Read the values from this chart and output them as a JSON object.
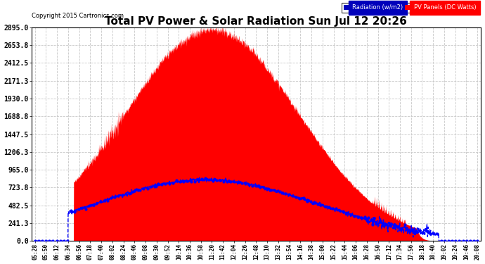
{
  "title": "Total PV Power & Solar Radiation Sun Jul 12 20:26",
  "copyright": "Copyright 2015 Cartronics.com",
  "background_color": "#ffffff",
  "plot_bg_color": "#ffffff",
  "grid_color": "#c8c8c8",
  "yticks": [
    0.0,
    241.3,
    482.5,
    723.8,
    965.0,
    1206.3,
    1447.5,
    1688.8,
    1930.0,
    2171.3,
    2412.5,
    2653.8,
    2895.0
  ],
  "ymax": 2895.0,
  "ymin": 0.0,
  "legend_radiation_color": "#0000bb",
  "legend_pv_color": "#ff0000",
  "legend_radiation_text": "Radiation (w/m2)",
  "legend_pv_text": "PV Panels (DC Watts)",
  "pv_fill_color": "#ff0000",
  "radiation_line_color": "#0000ff",
  "xtick_labels": [
    "05:28",
    "05:50",
    "06:12",
    "06:34",
    "06:56",
    "07:18",
    "07:40",
    "08:02",
    "08:24",
    "08:46",
    "09:08",
    "09:30",
    "09:52",
    "10:14",
    "10:36",
    "10:58",
    "11:20",
    "11:42",
    "12:04",
    "12:26",
    "12:48",
    "13:10",
    "13:32",
    "13:54",
    "14:16",
    "14:38",
    "15:00",
    "15:22",
    "15:44",
    "16:06",
    "16:28",
    "16:50",
    "17:12",
    "17:34",
    "17:56",
    "18:18",
    "18:40",
    "19:02",
    "19:24",
    "19:46",
    "20:08"
  ]
}
